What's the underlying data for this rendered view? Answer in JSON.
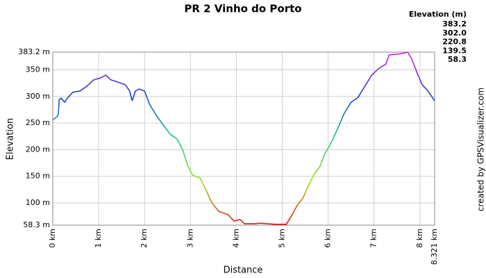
{
  "chart_data": {
    "type": "line",
    "title": "PR 2 Vinho do Porto",
    "xlabel": "Distance",
    "ylabel": "Elevation",
    "x": [
      0,
      0.09,
      0.12,
      0.14,
      0.18,
      0.26,
      0.32,
      0.44,
      0.59,
      0.74,
      0.89,
      1.05,
      1.15,
      1.27,
      1.42,
      1.58,
      1.67,
      1.73,
      1.8,
      1.88,
      2.0,
      2.11,
      2.26,
      2.41,
      2.56,
      2.71,
      2.83,
      2.94,
      3.05,
      3.21,
      3.33,
      3.47,
      3.62,
      3.82,
      3.95,
      4.08,
      4.18,
      4.38,
      4.53,
      4.68,
      4.83,
      5.09,
      5.21,
      5.33,
      5.45,
      5.56,
      5.7,
      5.82,
      5.92,
      6.06,
      6.21,
      6.35,
      6.5,
      6.65,
      6.8,
      6.95,
      7.11,
      7.26,
      7.33,
      7.48,
      7.64,
      7.73,
      7.82,
      7.94,
      8.05,
      8.17,
      8.24,
      8.321
    ],
    "values": [
      256,
      262,
      266,
      294,
      297,
      289,
      297,
      308,
      310,
      319,
      331,
      335,
      340,
      331,
      327,
      322,
      311,
      292,
      310,
      314,
      310,
      285,
      264,
      246,
      229,
      220,
      200,
      170,
      152,
      147,
      126,
      100,
      84,
      78,
      66,
      69,
      61,
      61,
      62,
      61,
      60,
      60,
      77,
      96,
      109,
      131,
      155,
      168,
      191,
      212,
      240,
      268,
      289,
      298,
      319,
      340,
      353,
      361,
      378,
      379,
      381,
      383.2,
      371,
      344,
      322,
      311,
      302,
      292
    ],
    "xlim": [
      0,
      8.321
    ],
    "ylim": [
      58.3,
      383.2
    ],
    "xticks": [
      {
        "value": 0,
        "label": "0 km"
      },
      {
        "value": 1,
        "label": "1 km"
      },
      {
        "value": 2,
        "label": "2 km"
      },
      {
        "value": 3,
        "label": "3 km"
      },
      {
        "value": 4,
        "label": "4 km"
      },
      {
        "value": 5,
        "label": "5 km"
      },
      {
        "value": 6,
        "label": "6 km"
      },
      {
        "value": 7,
        "label": "7 km"
      },
      {
        "value": 8,
        "label": "8 km"
      },
      {
        "value": 8.321,
        "label": "8.321 km"
      }
    ],
    "yticks": [
      {
        "value": 58.3,
        "label": "58.3 m"
      },
      {
        "value": 100,
        "label": "100 m"
      },
      {
        "value": 150,
        "label": "150 m"
      },
      {
        "value": 200,
        "label": "200 m"
      },
      {
        "value": 250,
        "label": "250 m"
      },
      {
        "value": 300,
        "label": "300 m"
      },
      {
        "value": 350,
        "label": "350 m"
      },
      {
        "value": 383.2,
        "label": "383.2 m"
      }
    ],
    "grid": true,
    "legend": {
      "title": "Elevation (m)",
      "stops": [
        {
          "value": 383.2,
          "color": "#d81ed8"
        },
        {
          "value": 302,
          "label": "302.0",
          "color": "#1a3fc4"
        },
        {
          "value": 220.8,
          "color": "#18c890"
        },
        {
          "value": 139.5,
          "color": "#a8e010"
        },
        {
          "value": 58.3,
          "color": "#e01010"
        }
      ]
    },
    "credit": "created by GPSVisualizer.com"
  }
}
